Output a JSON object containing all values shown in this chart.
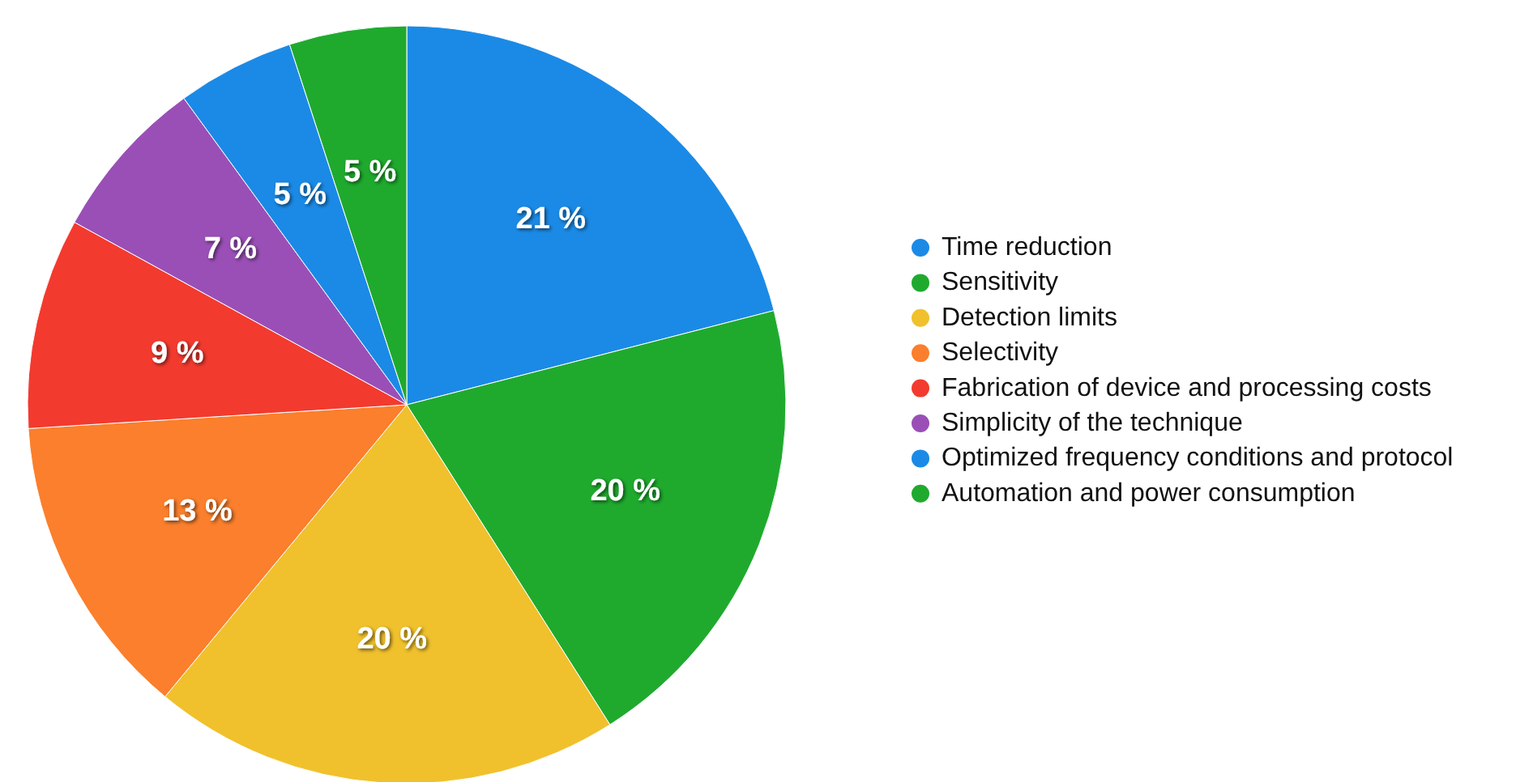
{
  "chart_data": {
    "type": "pie",
    "categories": [
      "Time reduction",
      "Sensitivity",
      "Detection limits",
      "Selectivity",
      "Fabrication of device and processing costs",
      "Simplicity of the technique",
      "Optimized frequency conditions and protocol",
      "Automation and power consumption"
    ],
    "values": [
      21,
      20,
      20,
      13,
      9,
      7,
      5,
      5
    ],
    "value_labels": [
      "21 %",
      "20 %",
      "20 %",
      "13 %",
      "9 %",
      "7 %",
      "5 %",
      "5 %"
    ],
    "colors": [
      "#1b8ae6",
      "#1faa2e",
      "#f0c12c",
      "#fb7f2c",
      "#f33a2f",
      "#9a4fb6",
      "#1b8ae6",
      "#1faa2e"
    ],
    "legend": "right"
  }
}
